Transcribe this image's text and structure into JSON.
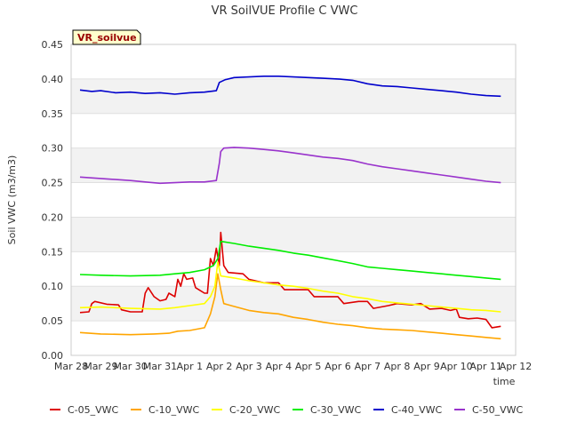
{
  "chart_data": {
    "type": "line",
    "title": "VR SoilVUE Profile C VWC",
    "xlabel": "time",
    "ylabel": "Soil VWC (m3/m3)",
    "site_label": "VR_soilvue",
    "x_domain": [
      0,
      15
    ],
    "ylim": [
      0,
      0.45
    ],
    "x_ticks": [
      {
        "x": 0,
        "label": "Mar 28"
      },
      {
        "x": 1,
        "label": "Mar 29"
      },
      {
        "x": 2,
        "label": "Mar 30"
      },
      {
        "x": 3,
        "label": "Mar 31"
      },
      {
        "x": 4,
        "label": "Apr 1"
      },
      {
        "x": 5,
        "label": "Apr 2"
      },
      {
        "x": 6,
        "label": "Apr 3"
      },
      {
        "x": 7,
        "label": "Apr 4"
      },
      {
        "x": 8,
        "label": "Apr 5"
      },
      {
        "x": 9,
        "label": "Apr 6"
      },
      {
        "x": 10,
        "label": "Apr 7"
      },
      {
        "x": 11,
        "label": "Apr 8"
      },
      {
        "x": 12,
        "label": "Apr 9"
      },
      {
        "x": 13,
        "label": "Apr 10"
      },
      {
        "x": 14,
        "label": "Apr 11"
      },
      {
        "x": 15,
        "label": "Apr 12"
      }
    ],
    "y_ticks": [
      {
        "y": 0.0,
        "label": "0.00"
      },
      {
        "y": 0.05,
        "label": "0.05"
      },
      {
        "y": 0.1,
        "label": "0.10"
      },
      {
        "y": 0.15,
        "label": "0.15"
      },
      {
        "y": 0.2,
        "label": "0.20"
      },
      {
        "y": 0.25,
        "label": "0.25"
      },
      {
        "y": 0.3,
        "label": "0.30"
      },
      {
        "y": 0.35,
        "label": "0.35"
      },
      {
        "y": 0.4,
        "label": "0.40"
      },
      {
        "y": 0.45,
        "label": "0.45"
      }
    ],
    "grid": true,
    "legend_position": "bottom",
    "series": [
      {
        "name": "C-05_VWC",
        "color": "#dd0000",
        "points": [
          [
            0.3,
            0.062
          ],
          [
            0.6,
            0.063
          ],
          [
            0.7,
            0.075
          ],
          [
            0.8,
            0.078
          ],
          [
            1.2,
            0.074
          ],
          [
            1.6,
            0.073
          ],
          [
            1.7,
            0.066
          ],
          [
            2.0,
            0.063
          ],
          [
            2.4,
            0.063
          ],
          [
            2.5,
            0.09
          ],
          [
            2.6,
            0.098
          ],
          [
            2.8,
            0.085
          ],
          [
            3.0,
            0.079
          ],
          [
            3.2,
            0.081
          ],
          [
            3.3,
            0.09
          ],
          [
            3.5,
            0.085
          ],
          [
            3.6,
            0.11
          ],
          [
            3.7,
            0.1
          ],
          [
            3.8,
            0.118
          ],
          [
            3.9,
            0.11
          ],
          [
            4.1,
            0.112
          ],
          [
            4.2,
            0.098
          ],
          [
            4.5,
            0.09
          ],
          [
            4.6,
            0.09
          ],
          [
            4.7,
            0.14
          ],
          [
            4.8,
            0.13
          ],
          [
            4.9,
            0.155
          ],
          [
            5.0,
            0.13
          ],
          [
            5.05,
            0.178
          ],
          [
            5.15,
            0.13
          ],
          [
            5.3,
            0.12
          ],
          [
            5.8,
            0.118
          ],
          [
            6.0,
            0.11
          ],
          [
            6.5,
            0.105
          ],
          [
            7.0,
            0.105
          ],
          [
            7.2,
            0.095
          ],
          [
            8.0,
            0.095
          ],
          [
            8.2,
            0.085
          ],
          [
            9.0,
            0.085
          ],
          [
            9.2,
            0.075
          ],
          [
            9.7,
            0.078
          ],
          [
            10.0,
            0.078
          ],
          [
            10.2,
            0.068
          ],
          [
            10.7,
            0.072
          ],
          [
            11.0,
            0.075
          ],
          [
            11.5,
            0.073
          ],
          [
            11.8,
            0.075
          ],
          [
            12.1,
            0.067
          ],
          [
            12.5,
            0.068
          ],
          [
            12.8,
            0.065
          ],
          [
            13.0,
            0.067
          ],
          [
            13.1,
            0.055
          ],
          [
            13.4,
            0.053
          ],
          [
            13.7,
            0.054
          ],
          [
            14.0,
            0.052
          ],
          [
            14.2,
            0.04
          ],
          [
            14.5,
            0.042
          ]
        ]
      },
      {
        "name": "C-10_VWC",
        "color": "#ffa500",
        "points": [
          [
            0.3,
            0.033
          ],
          [
            1.0,
            0.031
          ],
          [
            2.0,
            0.03
          ],
          [
            2.8,
            0.031
          ],
          [
            3.3,
            0.032
          ],
          [
            3.6,
            0.035
          ],
          [
            4.0,
            0.036
          ],
          [
            4.5,
            0.04
          ],
          [
            4.7,
            0.06
          ],
          [
            4.85,
            0.085
          ],
          [
            4.95,
            0.118
          ],
          [
            5.05,
            0.095
          ],
          [
            5.15,
            0.075
          ],
          [
            5.4,
            0.072
          ],
          [
            6.0,
            0.065
          ],
          [
            6.5,
            0.062
          ],
          [
            7.0,
            0.06
          ],
          [
            7.5,
            0.055
          ],
          [
            8.0,
            0.052
          ],
          [
            8.5,
            0.048
          ],
          [
            9.0,
            0.045
          ],
          [
            9.5,
            0.043
          ],
          [
            10.0,
            0.04
          ],
          [
            10.5,
            0.038
          ],
          [
            11.0,
            0.037
          ],
          [
            11.5,
            0.036
          ],
          [
            12.0,
            0.034
          ],
          [
            12.5,
            0.032
          ],
          [
            13.0,
            0.03
          ],
          [
            13.5,
            0.028
          ],
          [
            14.0,
            0.026
          ],
          [
            14.5,
            0.024
          ]
        ]
      },
      {
        "name": "C-20_VWC",
        "color": "#ffff00",
        "points": [
          [
            0.3,
            0.069
          ],
          [
            1.0,
            0.07
          ],
          [
            2.0,
            0.068
          ],
          [
            3.0,
            0.067
          ],
          [
            3.5,
            0.069
          ],
          [
            4.0,
            0.072
          ],
          [
            4.5,
            0.075
          ],
          [
            4.7,
            0.085
          ],
          [
            4.85,
            0.1
          ],
          [
            4.95,
            0.135
          ],
          [
            5.05,
            0.115
          ],
          [
            5.5,
            0.112
          ],
          [
            6.0,
            0.108
          ],
          [
            6.5,
            0.105
          ],
          [
            7.0,
            0.102
          ],
          [
            7.5,
            0.1
          ],
          [
            8.0,
            0.097
          ],
          [
            8.5,
            0.093
          ],
          [
            9.0,
            0.09
          ],
          [
            9.5,
            0.085
          ],
          [
            10.0,
            0.082
          ],
          [
            10.5,
            0.078
          ],
          [
            11.0,
            0.076
          ],
          [
            11.5,
            0.074
          ],
          [
            12.0,
            0.072
          ],
          [
            12.5,
            0.07
          ],
          [
            13.0,
            0.068
          ],
          [
            13.5,
            0.066
          ],
          [
            14.0,
            0.065
          ],
          [
            14.5,
            0.063
          ]
        ]
      },
      {
        "name": "C-30_VWC",
        "color": "#00ee00",
        "points": [
          [
            0.3,
            0.117
          ],
          [
            1.0,
            0.116
          ],
          [
            2.0,
            0.115
          ],
          [
            3.0,
            0.116
          ],
          [
            3.5,
            0.118
          ],
          [
            4.0,
            0.12
          ],
          [
            4.5,
            0.124
          ],
          [
            4.8,
            0.13
          ],
          [
            4.95,
            0.14
          ],
          [
            5.05,
            0.165
          ],
          [
            5.5,
            0.162
          ],
          [
            6.0,
            0.158
          ],
          [
            6.5,
            0.155
          ],
          [
            7.0,
            0.152
          ],
          [
            7.5,
            0.148
          ],
          [
            8.0,
            0.145
          ],
          [
            8.5,
            0.141
          ],
          [
            9.0,
            0.137
          ],
          [
            9.5,
            0.133
          ],
          [
            10.0,
            0.128
          ],
          [
            10.5,
            0.126
          ],
          [
            11.0,
            0.124
          ],
          [
            11.5,
            0.122
          ],
          [
            12.0,
            0.12
          ],
          [
            12.5,
            0.118
          ],
          [
            13.0,
            0.116
          ],
          [
            13.5,
            0.114
          ],
          [
            14.0,
            0.112
          ],
          [
            14.5,
            0.11
          ]
        ]
      },
      {
        "name": "C-40_VWC",
        "color": "#0000cc",
        "points": [
          [
            0.3,
            0.384
          ],
          [
            0.7,
            0.382
          ],
          [
            1.0,
            0.383
          ],
          [
            1.5,
            0.38
          ],
          [
            2.0,
            0.381
          ],
          [
            2.5,
            0.379
          ],
          [
            3.0,
            0.38
          ],
          [
            3.5,
            0.378
          ],
          [
            4.0,
            0.38
          ],
          [
            4.5,
            0.381
          ],
          [
            4.9,
            0.383
          ],
          [
            5.0,
            0.395
          ],
          [
            5.2,
            0.399
          ],
          [
            5.5,
            0.402
          ],
          [
            6.0,
            0.403
          ],
          [
            6.5,
            0.404
          ],
          [
            7.0,
            0.404
          ],
          [
            7.5,
            0.403
          ],
          [
            8.0,
            0.402
          ],
          [
            8.5,
            0.401
          ],
          [
            9.0,
            0.4
          ],
          [
            9.5,
            0.398
          ],
          [
            10.0,
            0.393
          ],
          [
            10.5,
            0.39
          ],
          [
            11.0,
            0.389
          ],
          [
            11.5,
            0.387
          ],
          [
            12.0,
            0.385
          ],
          [
            12.5,
            0.383
          ],
          [
            13.0,
            0.381
          ],
          [
            13.5,
            0.378
          ],
          [
            14.0,
            0.376
          ],
          [
            14.5,
            0.375
          ]
        ]
      },
      {
        "name": "C-50_VWC",
        "color": "#9933cc",
        "points": [
          [
            0.3,
            0.258
          ],
          [
            1.0,
            0.256
          ],
          [
            2.0,
            0.253
          ],
          [
            2.5,
            0.251
          ],
          [
            3.0,
            0.249
          ],
          [
            3.5,
            0.25
          ],
          [
            4.0,
            0.251
          ],
          [
            4.5,
            0.251
          ],
          [
            4.9,
            0.253
          ],
          [
            5.0,
            0.278
          ],
          [
            5.05,
            0.295
          ],
          [
            5.15,
            0.3
          ],
          [
            5.5,
            0.301
          ],
          [
            6.0,
            0.3
          ],
          [
            6.5,
            0.298
          ],
          [
            7.0,
            0.296
          ],
          [
            7.5,
            0.293
          ],
          [
            8.0,
            0.29
          ],
          [
            8.5,
            0.287
          ],
          [
            9.0,
            0.285
          ],
          [
            9.5,
            0.282
          ],
          [
            10.0,
            0.277
          ],
          [
            10.5,
            0.273
          ],
          [
            11.0,
            0.27
          ],
          [
            11.5,
            0.267
          ],
          [
            12.0,
            0.264
          ],
          [
            12.5,
            0.261
          ],
          [
            13.0,
            0.258
          ],
          [
            13.5,
            0.255
          ],
          [
            14.0,
            0.252
          ],
          [
            14.5,
            0.25
          ]
        ]
      }
    ]
  }
}
